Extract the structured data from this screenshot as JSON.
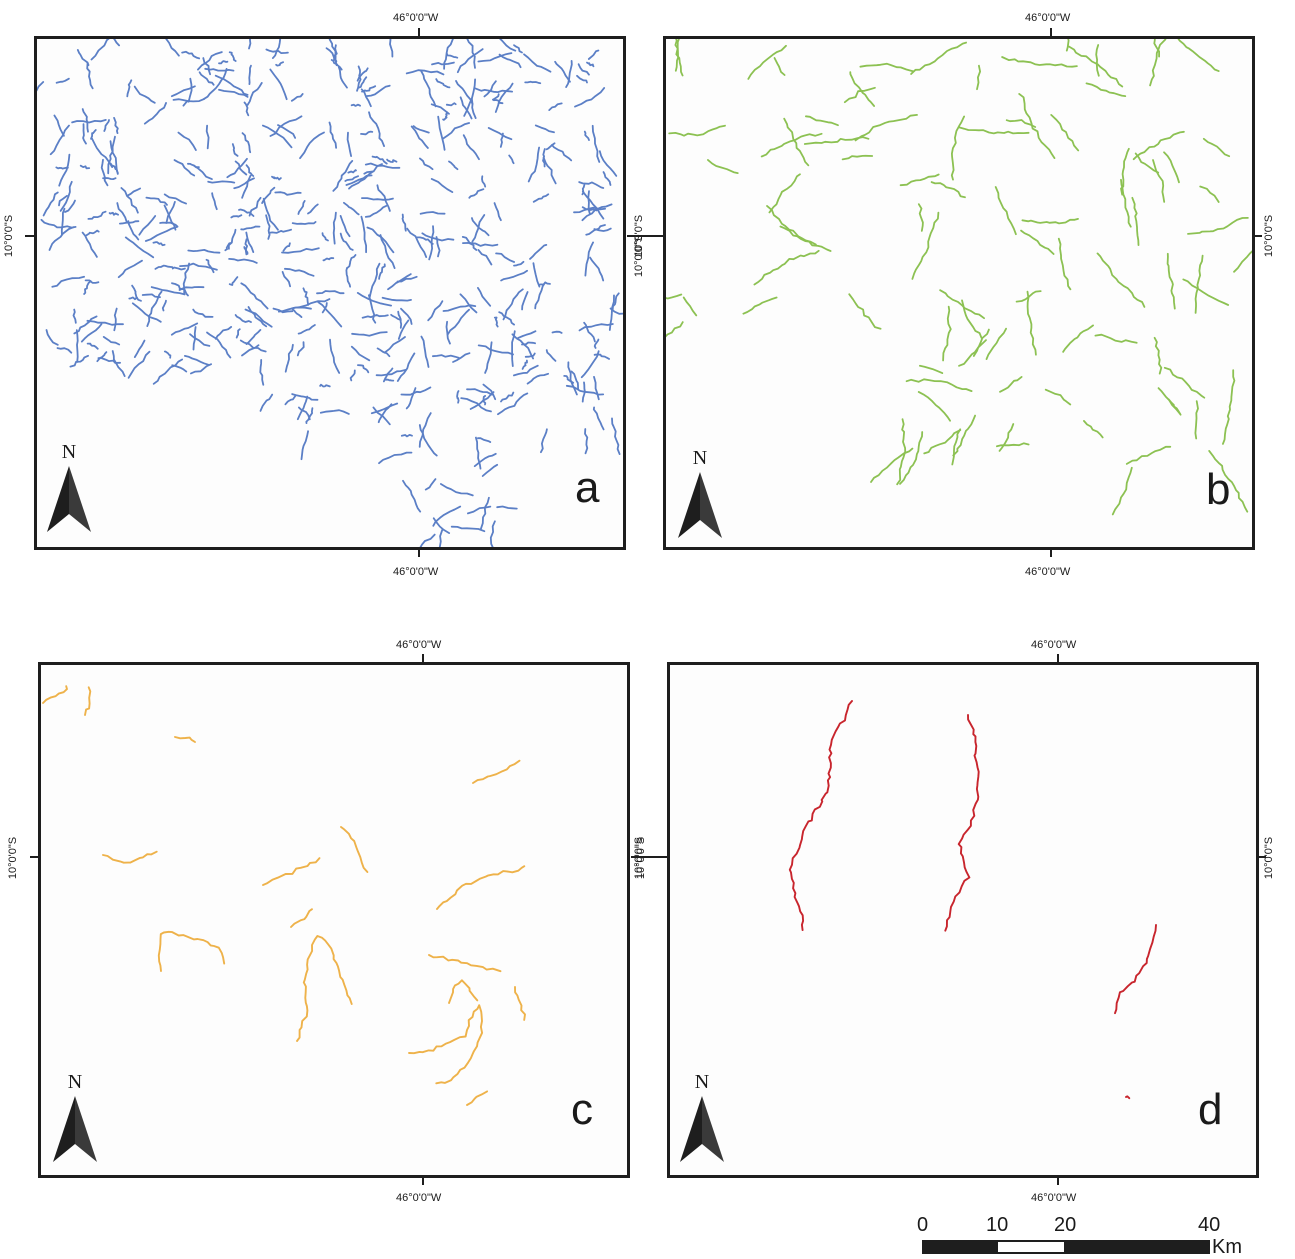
{
  "colors": {
    "a": "#5b7fc6",
    "b": "#8cc152",
    "c": "#eeb24a",
    "d": "#c8252d"
  },
  "panels": {
    "a": {
      "letter": "a",
      "top_coord": "46°0'0\"W",
      "bottom_coord": "46°0'0\"W",
      "left_coord": "10°0'0\"S",
      "right_coord": "10°0'0\"S",
      "north": "N"
    },
    "b": {
      "letter": "b",
      "top_coord": "46°0'0\"W",
      "bottom_coord": "46°0'0\"W",
      "left_coord": "10°0'0\"S",
      "right_coord": "10°0'0\"S",
      "north": "N"
    },
    "c": {
      "letter": "c",
      "top_coord": "46°0'0\"W",
      "bottom_coord": "46°0'0\"W",
      "left_coord": "10°0'0\"S",
      "right_coord": "10°0'0\"S",
      "north": "N"
    },
    "d": {
      "letter": "d",
      "top_coord": "46°0'0\"W",
      "bottom_coord": "46°0'0\"W",
      "left_coord": "10°0'0\"S",
      "right_coord": "10°0'0\"S",
      "north": "N"
    }
  },
  "scale_bar": {
    "labels": [
      "0",
      "10",
      "20",
      "40"
    ],
    "unit": "Km"
  }
}
